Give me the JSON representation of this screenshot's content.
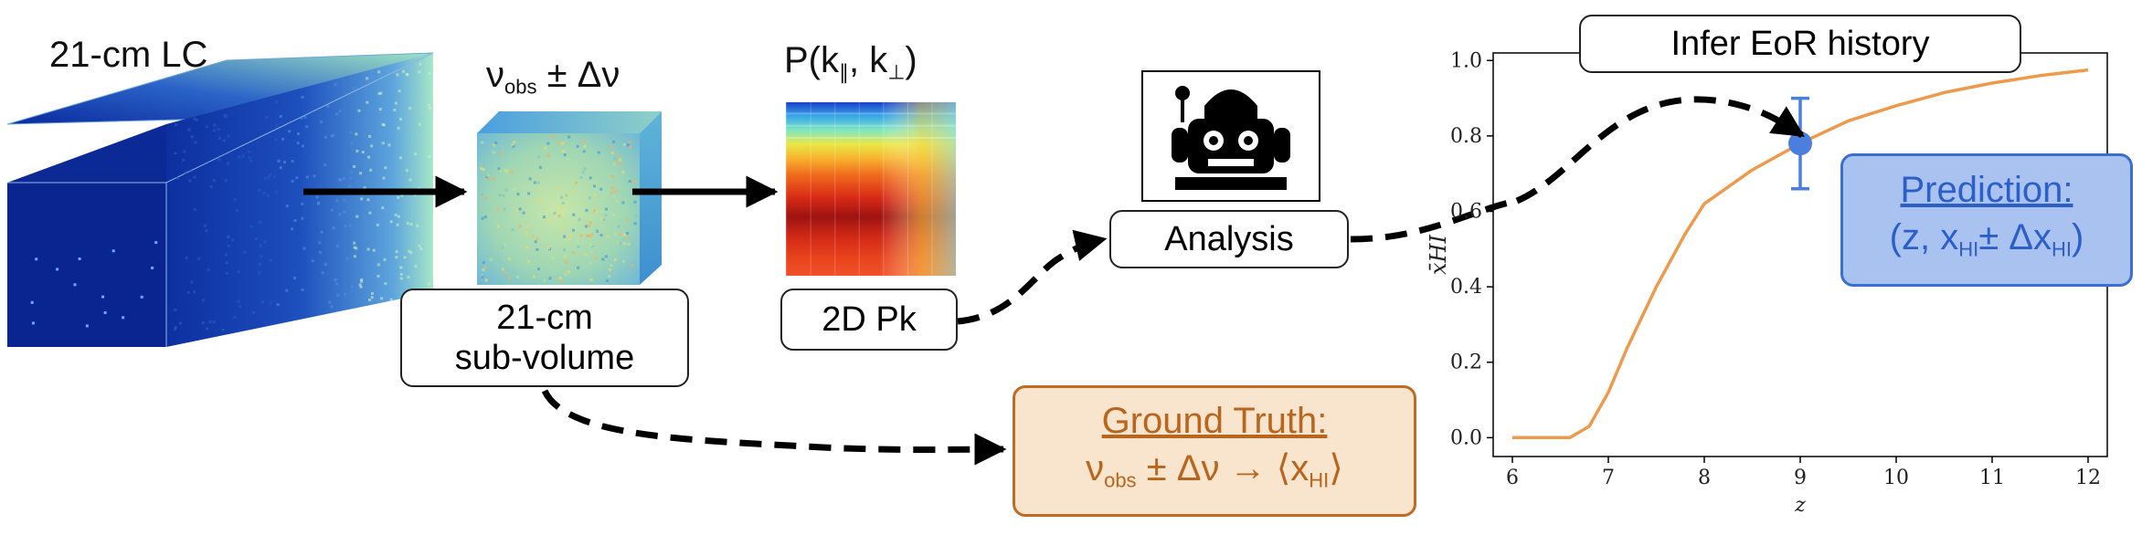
{
  "lightcone": {
    "label": "21-cm LC"
  },
  "subvolume_cube": {
    "label_main": "ν",
    "label_sub": "obs",
    "label_tail": " ± Δν"
  },
  "pk_image": {
    "label_main": "P(k",
    "label_sub1": "∥",
    "label_mid": ", k",
    "label_sub2": "⊥",
    "label_tail": ")"
  },
  "subvolume_box": {
    "line1": "21-cm",
    "line2": "sub-volume"
  },
  "pk_box": {
    "label": "2D Pk"
  },
  "analysis_box": {
    "label": "Analysis"
  },
  "robot": {
    "icon": "robot-icon"
  },
  "infer_box": {
    "label": "Infer EoR history"
  },
  "ground_truth": {
    "title": "Ground Truth:",
    "eq_nu": "ν",
    "eq_nu_sub": "obs",
    "eq_mid": " ± Δν  →  ⟨x",
    "eq_x_sub": "HI",
    "eq_end": "⟩"
  },
  "prediction": {
    "title": "Prediction:",
    "eq_start": "(z, x",
    "eq_sub1": "HI",
    "eq_mid": "± Δx",
    "eq_sub2": "HI",
    "eq_end": ")"
  },
  "chart_data": {
    "type": "line",
    "xlabel": "z",
    "ylabel": "x̄HI",
    "xlim": [
      5.8,
      12.2
    ],
    "ylim": [
      -0.05,
      1.02
    ],
    "xticks": [
      6,
      7,
      8,
      9,
      10,
      11,
      12
    ],
    "yticks": [
      0.0,
      0.2,
      0.4,
      0.6,
      0.8,
      1.0
    ],
    "grid": false,
    "series": [
      {
        "x": [
          6.0,
          6.3,
          6.6,
          6.8,
          7.0,
          7.2,
          7.5,
          7.8,
          8.0,
          8.5,
          9.0,
          9.5,
          10.0,
          10.5,
          11.0,
          11.5,
          12.0
        ],
        "y": [
          0.0,
          0.0,
          0.0,
          0.03,
          0.12,
          0.24,
          0.4,
          0.54,
          0.62,
          0.71,
          0.78,
          0.84,
          0.88,
          0.915,
          0.94,
          0.96,
          0.975
        ],
        "color": "#ee9a4d"
      }
    ],
    "point": {
      "x": 9.0,
      "y": 0.78,
      "yerr": 0.12,
      "color": "#4a7fde"
    }
  }
}
